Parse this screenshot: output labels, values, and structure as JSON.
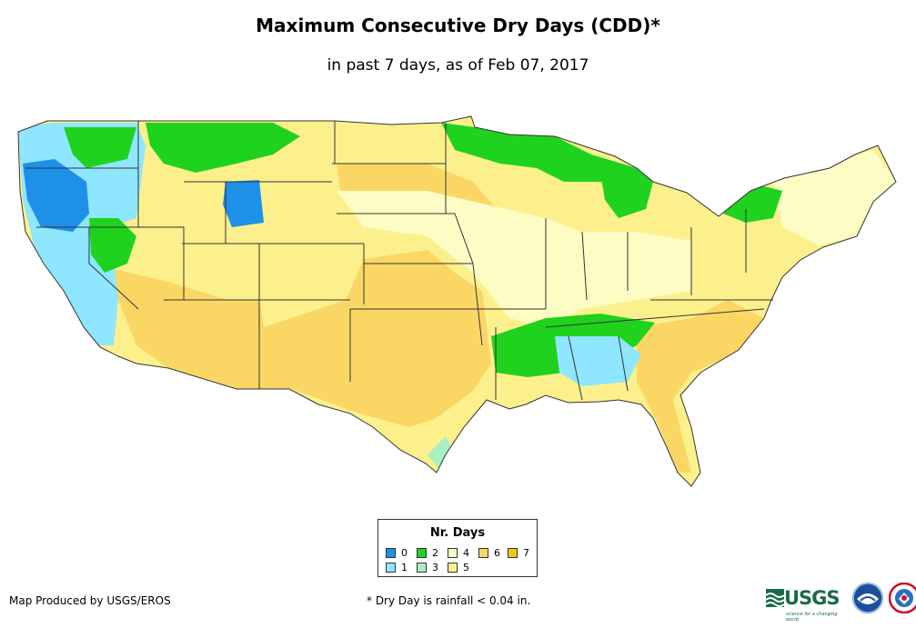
{
  "title": "Maximum Consecutive Dry Days (CDD)*",
  "subtitle": "in past 7 days, as of Feb 07, 2017",
  "legend": {
    "title": "Nr. Days",
    "items": [
      {
        "value": "0",
        "color": "#1e90e8"
      },
      {
        "value": "1",
        "color": "#8ee6ff"
      },
      {
        "value": "2",
        "color": "#1ed21e"
      },
      {
        "value": "3",
        "color": "#a8f0c0"
      },
      {
        "value": "4",
        "color": "#fcfcc4"
      },
      {
        "value": "5",
        "color": "#fcf08c"
      },
      {
        "value": "6",
        "color": "#fad765"
      },
      {
        "value": "7",
        "color": "#f8c412"
      }
    ]
  },
  "credit": "Map Produced by USGS/EROS",
  "footnote": "* Dry Day is rainfall < 0.04 in.",
  "logos": {
    "usgs": "USGS",
    "usgs_tagline": "science for a changing world",
    "noaa": "NOAA",
    "nws": "NWS"
  }
}
